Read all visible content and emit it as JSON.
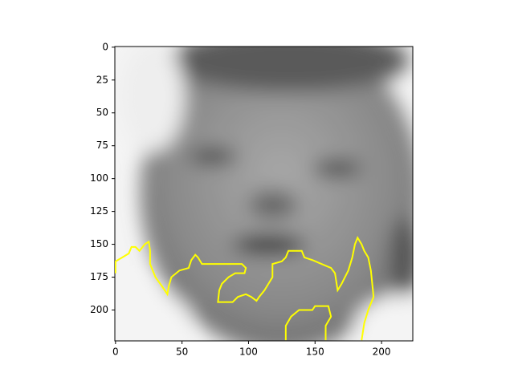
{
  "chart_data": {
    "type": "image",
    "xlim": [
      -0.5,
      223.5
    ],
    "ylim": [
      223.5,
      -0.5
    ],
    "xticks": [
      0,
      50,
      100,
      150,
      200
    ],
    "yticks": [
      0,
      25,
      50,
      75,
      100,
      125,
      150,
      175,
      200
    ],
    "series": [
      {
        "color": "#ffff00",
        "x": [
          0,
          0,
          5,
          10,
          12,
          15,
          18,
          22,
          25,
          26,
          26,
          30,
          35,
          39,
          40,
          42,
          48,
          55,
          57,
          60,
          62,
          65,
          95,
          98,
          97,
          90,
          85,
          80,
          78,
          77,
          88,
          92,
          98,
          102,
          106,
          108,
          112,
          115,
          118,
          118,
          125,
          128,
          130,
          140,
          142,
          148,
          155,
          162,
          165,
          167,
          170,
          175,
          178,
          180,
          182,
          185,
          187,
          190,
          192,
          193,
          194,
          190,
          187,
          185
        ],
        "y": [
          172,
          163,
          160,
          157,
          152,
          152,
          155,
          150,
          148,
          155,
          165,
          175,
          182,
          188,
          182,
          175,
          170,
          168,
          162,
          158,
          160,
          165,
          165,
          168,
          172,
          172,
          175,
          180,
          185,
          194,
          194,
          190,
          188,
          190,
          193,
          190,
          185,
          180,
          175,
          165,
          163,
          160,
          155,
          155,
          160,
          162,
          165,
          168,
          172,
          185,
          180,
          170,
          160,
          150,
          145,
          150,
          155,
          160,
          170,
          180,
          190,
          200,
          210,
          223
        ]
      },
      {
        "color": "#ffff00",
        "x": [
          128,
          128,
          132,
          138,
          148,
          150,
          160,
          162,
          158,
          158
        ],
        "y": [
          223,
          212,
          205,
          200,
          200,
          197,
          197,
          205,
          212,
          223
        ]
      }
    ]
  }
}
